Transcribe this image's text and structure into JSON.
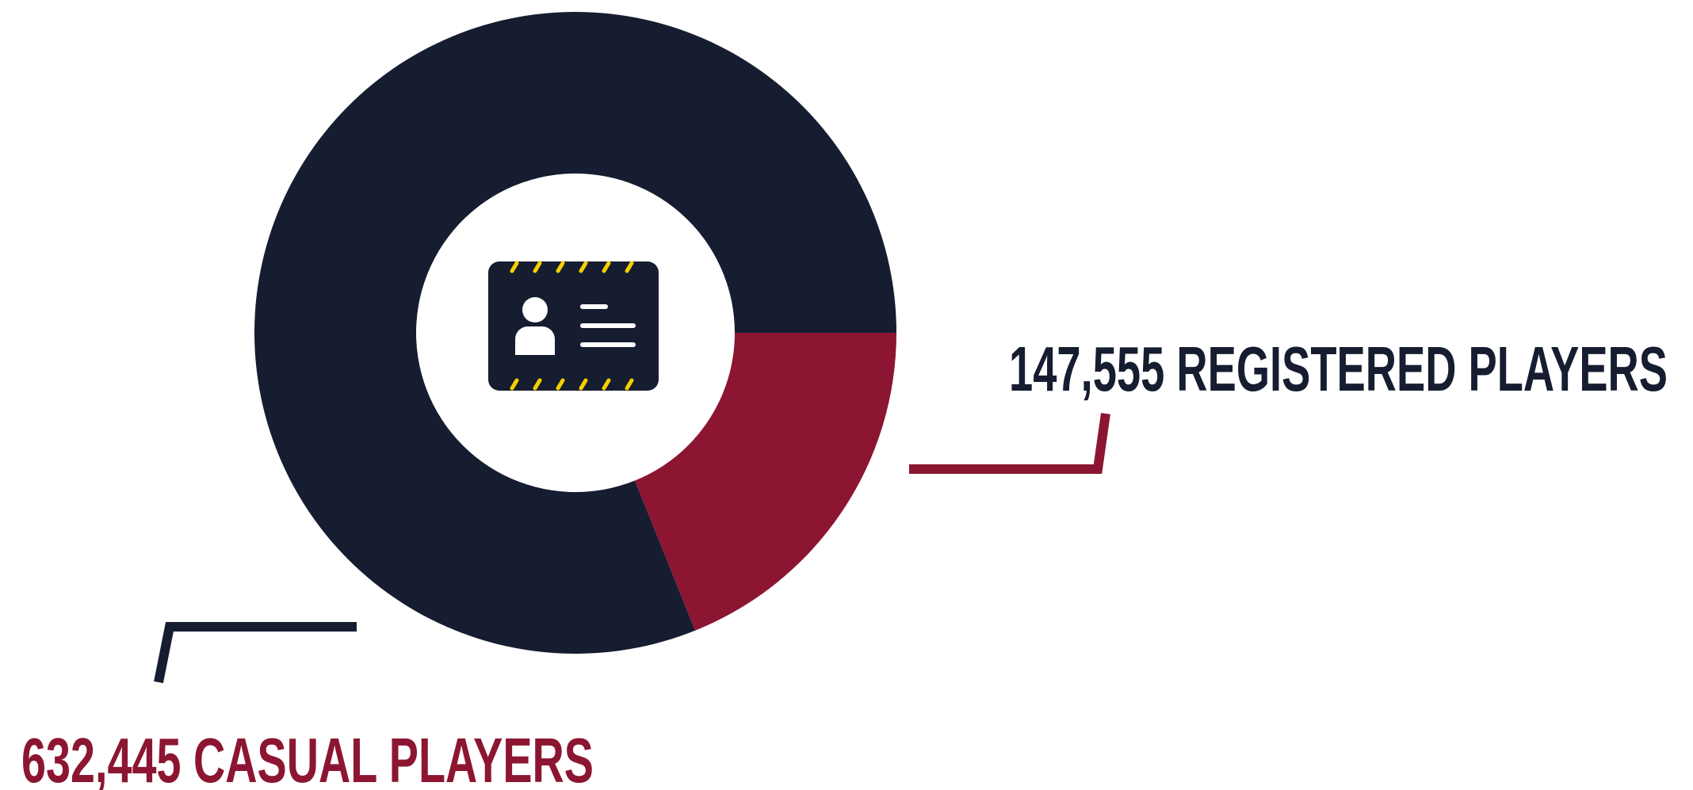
{
  "chart_data": {
    "type": "donut",
    "categories": [
      "REGISTERED PLAYERS",
      "CASUAL PLAYERS"
    ],
    "values": [
      147555,
      632445
    ],
    "value_labels": [
      "147,555",
      "632,445"
    ],
    "colors": [
      "#8c1632",
      "#161d30"
    ]
  }
}
